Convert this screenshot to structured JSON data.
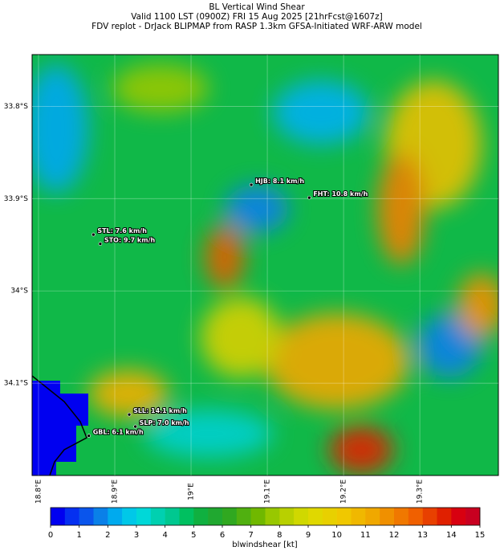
{
  "map": {
    "title": [
      "BL Vertical Wind Shear",
      "Valid 1100 LST (0900Z) FRI 15 Aug 2025 [21hrFcst@1607z]",
      "FDV replot - DrJack BLIPMAP from RASP 1.3km GFSA-Initiated WRF-ARW model"
    ],
    "xlim": [
      18.7916,
      19.403
    ],
    "ylim": [
      -34.2,
      -33.744
    ],
    "xticks": [
      {
        "value": 18.8,
        "label": "18.8°E"
      },
      {
        "value": 18.9,
        "label": "18.9°E"
      },
      {
        "value": 19.0,
        "label": "19°E"
      },
      {
        "value": 19.1,
        "label": "19.1°E"
      },
      {
        "value": 19.2,
        "label": "19.2°E"
      },
      {
        "value": 19.3,
        "label": "19.3°E"
      }
    ],
    "yticks": [
      {
        "value": -33.8,
        "label": "33.8°S"
      },
      {
        "value": -33.9,
        "label": "33.9°S"
      },
      {
        "value": -34.0,
        "label": "34°S"
      },
      {
        "value": -34.1,
        "label": "34.1°S"
      }
    ],
    "stations": [
      {
        "label": "HJB: 8.1 km/h",
        "lon": 19.079,
        "lat": -33.885
      },
      {
        "label": "FHT: 10.8 km/h",
        "lon": 19.155,
        "lat": -33.899
      },
      {
        "label": "STL: 7.6 km/h",
        "lon": 18.872,
        "lat": -33.939
      },
      {
        "label": "STO: 9.7 km/h",
        "lon": 18.881,
        "lat": -33.949
      },
      {
        "label": "SLL: 14.1 km/h",
        "lon": 18.919,
        "lat": -34.134
      },
      {
        "label": "SLP: 7.0 km/h",
        "lon": 18.927,
        "lat": -34.147
      },
      {
        "label": "GBL: 6.1 km/h",
        "lon": 18.866,
        "lat": -34.157
      }
    ],
    "colorbar": {
      "label": "blwindshear [kt]",
      "lim": [
        0,
        15
      ],
      "ticks": [
        0,
        1,
        2,
        3,
        4,
        5,
        6,
        7,
        8,
        9,
        10,
        11,
        12,
        13,
        14,
        15
      ],
      "colors": [
        "#0000f0",
        "#0530f0",
        "#0a55ec",
        "#0a80e8",
        "#00aaee",
        "#00c8e8",
        "#00d8d8",
        "#00d0b0",
        "#00c890",
        "#00c060",
        "#10b040",
        "#20a830",
        "#30a820",
        "#50b010",
        "#70b800",
        "#98c800",
        "#b8d000",
        "#d0d800",
        "#e0d800",
        "#e8d000",
        "#f0c800",
        "#f0b800",
        "#f0a800",
        "#f09000",
        "#f07800",
        "#f06000",
        "#e84000",
        "#e02000",
        "#d80010",
        "#c80020"
      ]
    }
  }
}
